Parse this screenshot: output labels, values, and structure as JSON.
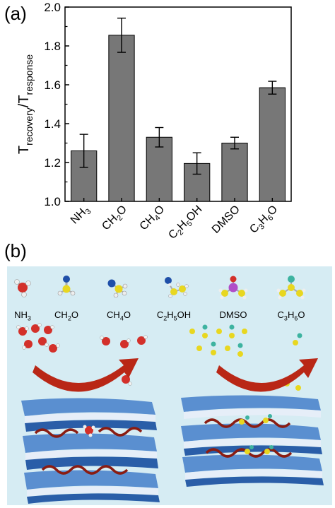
{
  "panel_a_label": "(a)",
  "panel_b_label": "(b)",
  "chart_data": {
    "type": "bar",
    "categories": [
      "NH3",
      "CH2O",
      "CH4O",
      "C2H5OH",
      "DMSO",
      "C3H6O"
    ],
    "category_labels": [
      {
        "parts": [
          [
            "N",
            ""
          ],
          [
            "H",
            ""
          ],
          [
            "3",
            "sub"
          ]
        ]
      },
      {
        "parts": [
          [
            "CH",
            ""
          ],
          [
            "2",
            "sub"
          ],
          [
            "O",
            ""
          ]
        ]
      },
      {
        "parts": [
          [
            "CH",
            ""
          ],
          [
            "4",
            "sub"
          ],
          [
            "O",
            ""
          ]
        ]
      },
      {
        "parts": [
          [
            "C",
            ""
          ],
          [
            "2",
            "sub"
          ],
          [
            "H",
            ""
          ],
          [
            "5",
            "sub"
          ],
          [
            "OH",
            ""
          ]
        ]
      },
      {
        "parts": [
          [
            "DMSO",
            ""
          ]
        ]
      },
      {
        "parts": [
          [
            "C",
            ""
          ],
          [
            "3",
            "sub"
          ],
          [
            "H",
            ""
          ],
          [
            "6",
            "sub"
          ],
          [
            "O",
            ""
          ]
        ]
      }
    ],
    "values": [
      1.26,
      1.855,
      1.33,
      1.195,
      1.3,
      1.585
    ],
    "errors": [
      0.085,
      0.088,
      0.05,
      0.055,
      0.03,
      0.033
    ],
    "ylabel_main": "T",
    "ylabel_sub1": "recovery",
    "ylabel_sep": "/T",
    "ylabel_sub2": "response",
    "ylim": [
      1.0,
      2.0
    ],
    "yticks": [
      "1.0",
      "1.2",
      "1.4",
      "1.6",
      "1.8",
      "2.0"
    ],
    "bar_color": "#777777",
    "grid": false
  },
  "illustration": {
    "background": "#d6ecf3",
    "molecule_labels": [
      {
        "parts": [
          [
            "NH",
            ""
          ],
          [
            "3",
            "sub"
          ]
        ]
      },
      {
        "parts": [
          [
            "CH",
            ""
          ],
          [
            "2",
            "sub"
          ],
          [
            "O",
            ""
          ]
        ]
      },
      {
        "parts": [
          [
            "CH",
            ""
          ],
          [
            "4",
            "sub"
          ],
          [
            "O",
            ""
          ]
        ]
      },
      {
        "parts": [
          [
            "C",
            ""
          ],
          [
            "2",
            "sub"
          ],
          [
            "H",
            ""
          ],
          [
            "5",
            "sub"
          ],
          [
            "OH",
            ""
          ]
        ]
      },
      {
        "parts": [
          [
            "DMSO",
            ""
          ]
        ]
      },
      {
        "parts": [
          [
            "C",
            ""
          ],
          [
            "3",
            "sub"
          ],
          [
            "H",
            ""
          ],
          [
            "6",
            "sub"
          ],
          [
            "O",
            ""
          ]
        ]
      }
    ]
  }
}
